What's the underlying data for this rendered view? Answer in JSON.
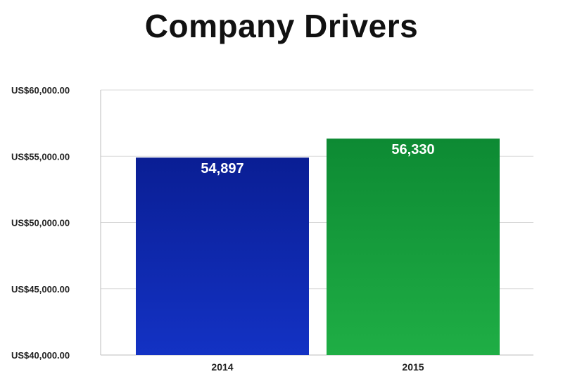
{
  "chart_data": {
    "type": "bar",
    "title": "Company Drivers",
    "xlabel": "",
    "ylabel": "",
    "categories": [
      "2014",
      "2015"
    ],
    "values": [
      54897,
      56330
    ],
    "data_labels": [
      "54,897",
      "56,330"
    ],
    "ylim": [
      40000,
      60000
    ],
    "yticks": [
      40000,
      45000,
      50000,
      55000,
      60000
    ],
    "ytick_labels": [
      "US$40,000.00",
      "US$45,000.00",
      "US$50,000.00",
      "US$55,000.00",
      "US$60,000.00"
    ],
    "grid": true,
    "legend": "none",
    "colors": {
      "bars": [
        [
          "#1332c4",
          "#0a1e94"
        ],
        [
          "#1fae45",
          "#0d8a33"
        ]
      ]
    }
  }
}
